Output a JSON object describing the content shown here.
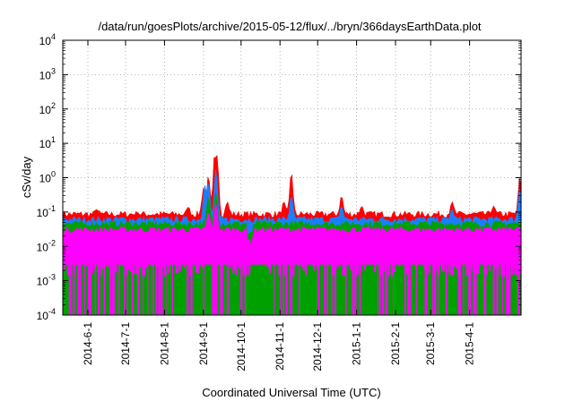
{
  "chart_data": {
    "type": "area",
    "title": "/data/run/goesPlots/archive/2015-05-12/flux/../bryn/366daysEarthData.plot",
    "xlabel": "Coordinated Universal Time (UTC)",
    "ylabel": "cSv/day",
    "y_scale": "log",
    "ylim": [
      0.0001,
      10000
    ],
    "xlim": [
      "2014-05-12",
      "2015-05-12"
    ],
    "grid": true,
    "legend": "none",
    "y_ticks": [
      {
        "base": "10",
        "exp": "-4"
      },
      {
        "base": "10",
        "exp": "-3"
      },
      {
        "base": "10",
        "exp": "-2"
      },
      {
        "base": "10",
        "exp": "-1"
      },
      {
        "base": "10",
        "exp": "0"
      },
      {
        "base": "10",
        "exp": "1"
      },
      {
        "base": "10",
        "exp": "2"
      },
      {
        "base": "10",
        "exp": "3"
      },
      {
        "base": "10",
        "exp": "4"
      }
    ],
    "x_ticks": [
      {
        "date": "2014-06-01",
        "label": "2014-6-1"
      },
      {
        "date": "2014-07-01",
        "label": "2014-7-1"
      },
      {
        "date": "2014-08-01",
        "label": "2014-8-1"
      },
      {
        "date": "2014-09-01",
        "label": "2014-9-1"
      },
      {
        "date": "2014-10-01",
        "label": "2014-10-1"
      },
      {
        "date": "2014-11-01",
        "label": "2014-11-1"
      },
      {
        "date": "2014-12-01",
        "label": "2014-12-1"
      },
      {
        "date": "2015-01-01",
        "label": "2015-1-1"
      },
      {
        "date": "2015-02-01",
        "label": "2015-2-1"
      },
      {
        "date": "2015-03-01",
        "label": "2015-3-1"
      },
      {
        "date": "2015-04-01",
        "label": "2015-4-1"
      }
    ],
    "series": [
      {
        "color": "#ff0000",
        "baseline": 0.085,
        "peaks": [
          {
            "x": "2014-06-08",
            "y": 0.12
          },
          {
            "x": "2014-07-10",
            "y": 0.1
          },
          {
            "x": "2014-08-20",
            "y": 0.14
          },
          {
            "x": "2014-09-01",
            "y": 0.5
          },
          {
            "x": "2014-09-05",
            "y": 1.2
          },
          {
            "x": "2014-09-10",
            "y": 5.5
          },
          {
            "x": "2014-09-12",
            "y": 4.5
          },
          {
            "x": "2014-09-20",
            "y": 0.2
          },
          {
            "x": "2014-11-04",
            "y": 0.2
          },
          {
            "x": "2014-11-10",
            "y": 1.5
          },
          {
            "x": "2014-12-20",
            "y": 0.3
          },
          {
            "x": "2015-01-05",
            "y": 0.15
          },
          {
            "x": "2015-03-18",
            "y": 0.2
          },
          {
            "x": "2015-04-20",
            "y": 0.15
          },
          {
            "x": "2015-05-11",
            "y": 1.0
          }
        ]
      },
      {
        "color": "#1a7fff",
        "baseline": 0.06,
        "peaks": [
          {
            "x": "2014-09-02",
            "y": 0.6
          },
          {
            "x": "2014-09-05",
            "y": 0.8
          },
          {
            "x": "2014-09-11",
            "y": 2.0
          },
          {
            "x": "2014-11-10",
            "y": 0.3
          },
          {
            "x": "2014-12-20",
            "y": 0.15
          },
          {
            "x": "2015-03-18",
            "y": 0.12
          },
          {
            "x": "2015-05-11",
            "y": 0.5
          }
        ]
      },
      {
        "color": "#00a000",
        "baseline": 0.045,
        "peaks": [
          {
            "x": "2014-09-05",
            "y": 0.3
          },
          {
            "x": "2014-09-11",
            "y": 0.4
          }
        ]
      },
      {
        "color": "#ff00ff",
        "baseline": 0.03,
        "floor": 0.003,
        "dropouts_to": 0.0001,
        "peaks": [
          {
            "x": "2014-09-05",
            "y": 0.1
          },
          {
            "x": "2014-09-11",
            "y": 0.2
          }
        ]
      }
    ]
  }
}
